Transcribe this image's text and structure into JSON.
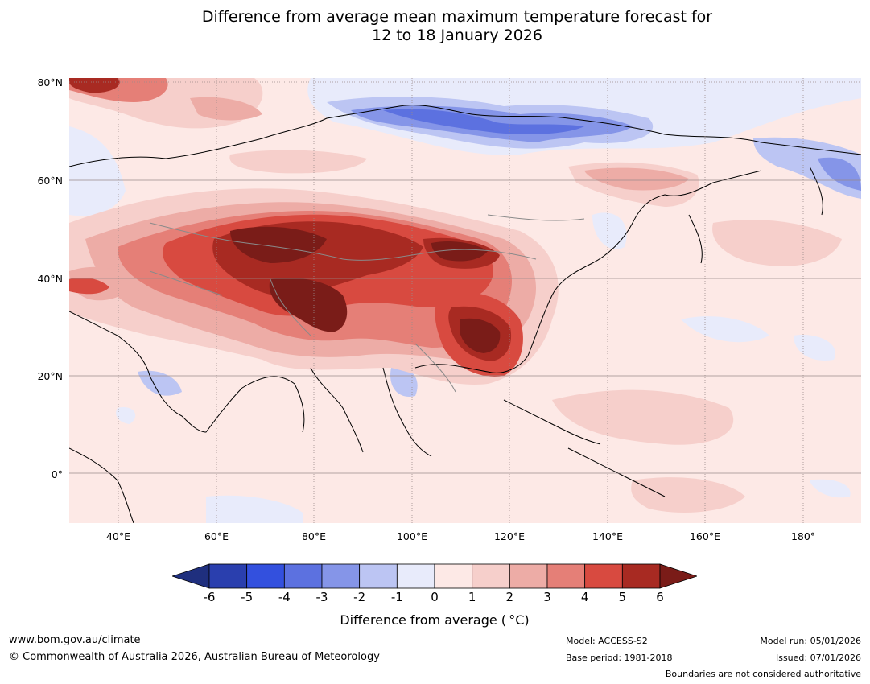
{
  "title": {
    "line1": "Difference from average mean maximum temperature forecast for",
    "line2": "12 to 18 January 2026"
  },
  "map": {
    "lat_labels": [
      "80°N",
      "60°N",
      "40°N",
      "20°N",
      "0°"
    ],
    "lon_labels": [
      "40°E",
      "60°E",
      "80°E",
      "100°E",
      "120°E",
      "140°E",
      "160°E",
      "180°"
    ]
  },
  "colorbar": {
    "ticks": [
      "-6",
      "-5",
      "-4",
      "-3",
      "-2",
      "-1",
      "0",
      "1",
      "2",
      "3",
      "4",
      "5",
      "6"
    ],
    "colors": [
      "#1f2f7e",
      "#2a3fae",
      "#3350de",
      "#5c71e0",
      "#8595e8",
      "#bcc5f3",
      "#e8ebfb",
      "#fde9e6",
      "#f6cfcb",
      "#edaca6",
      "#e57f77",
      "#d84a40",
      "#a82a22",
      "#7a1c18"
    ],
    "label": "Difference from average ( °C)"
  },
  "footer": {
    "url": "www.bom.gov.au/climate",
    "copyright": "© Commonwealth of Australia 2026, Australian Bureau of Meteorology",
    "model": "Model: ACCESS-S2",
    "base_period": "Base period: 1981-2018",
    "model_run": "Model run: 05/01/2026",
    "issued": "Issued: 07/01/2026",
    "disclaimer": "Boundaries are not considered authoritative"
  }
}
